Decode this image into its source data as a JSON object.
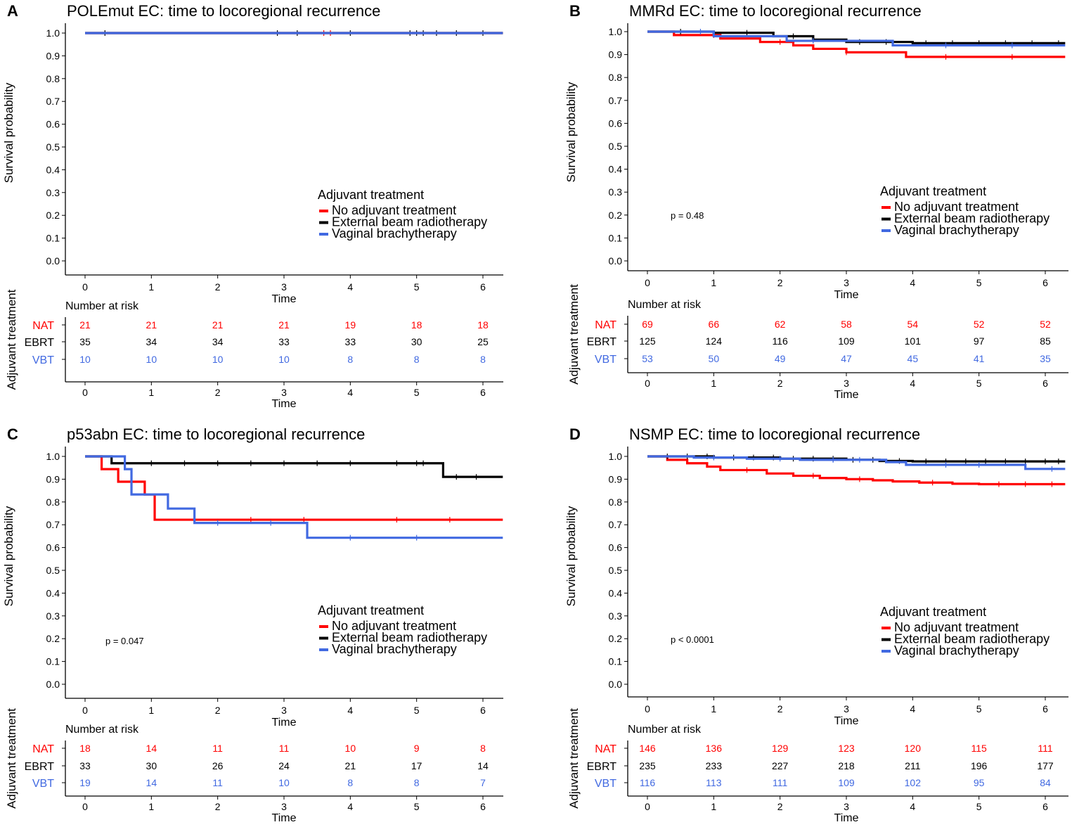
{
  "figure": {
    "colors": {
      "NAT": "#ff0000",
      "EBRT": "#000000",
      "VBT": "#4169e1"
    },
    "number_at_risk_label": "Number at risk"
  },
  "chart_data": [
    {
      "type": "line",
      "panel_label": "A",
      "title": "POLEmut EC: time to locoregional recurrence",
      "xlabel": "Time",
      "ylabel": "Survival probability",
      "risk_ylabel": "Adjuvant treatment",
      "xlim": [
        0,
        6.3
      ],
      "ylim": [
        0,
        1
      ],
      "x_ticks": [
        0,
        1,
        2,
        3,
        4,
        5,
        6
      ],
      "y_ticks": [
        "0.0",
        "0.1",
        "0.2",
        "0.3",
        "0.4",
        "0.5",
        "0.6",
        "0.7",
        "0.8",
        "0.9",
        "1.0"
      ],
      "legend": {
        "title": "Adjuvant treatment",
        "position": "bottom-right",
        "entries": [
          "No adjuvant treatment",
          "External beam radiotherapy",
          "Vaginal brachytherapy"
        ]
      },
      "p_value": "",
      "series": [
        {
          "name": "NAT",
          "color": "#ff0000",
          "x": [
            0,
            6.3
          ],
          "y": [
            1.0,
            1.0
          ],
          "censor": [
            3.6,
            3.7
          ]
        },
        {
          "name": "EBRT",
          "color": "#000000",
          "x": [
            0,
            6.3
          ],
          "y": [
            1.0,
            1.0
          ],
          "censor": [
            0.3,
            2.9,
            3.2,
            4.0,
            4.9,
            5.0,
            5.1,
            5.3,
            5.6,
            6.0
          ]
        },
        {
          "name": "VBT",
          "color": "#4169e1",
          "x": [
            0,
            6.3
          ],
          "y": [
            1.0,
            1.0
          ],
          "censor": []
        }
      ],
      "risk_table": [
        {
          "group": "NAT",
          "values": [
            "21",
            "21",
            "21",
            "21",
            "19",
            "18",
            "18"
          ]
        },
        {
          "group": "EBRT",
          "values": [
            "35",
            "34",
            "34",
            "33",
            "33",
            "30",
            "25"
          ]
        },
        {
          "group": "VBT",
          "values": [
            "10",
            "10",
            "10",
            "10",
            "8",
            "8",
            "8"
          ]
        }
      ]
    },
    {
      "type": "line",
      "panel_label": "B",
      "title": "MMRd EC: time to locoregional recurrence",
      "xlabel": "Time",
      "ylabel": "Survival probability",
      "risk_ylabel": "Adjuvant treatment",
      "xlim": [
        0,
        6.3
      ],
      "ylim": [
        0,
        1
      ],
      "x_ticks": [
        0,
        1,
        2,
        3,
        4,
        5,
        6
      ],
      "y_ticks": [
        "0.0",
        "0.1",
        "0.2",
        "0.3",
        "0.4",
        "0.5",
        "0.6",
        "0.7",
        "0.8",
        "0.9",
        "1.0"
      ],
      "legend": {
        "title": "Adjuvant treatment",
        "position": "bottom-right",
        "entries": [
          "No adjuvant treatment",
          "External beam radiotherapy",
          "Vaginal brachytherapy"
        ]
      },
      "p_value": "p = 0.48",
      "series": [
        {
          "name": "NAT",
          "color": "#ff0000",
          "x": [
            0,
            0.4,
            1.1,
            1.7,
            2.2,
            2.5,
            3.0,
            3.9,
            6.3
          ],
          "y": [
            1.0,
            0.985,
            0.97,
            0.955,
            0.94,
            0.925,
            0.91,
            0.89,
            0.89
          ],
          "censor": [
            1.0,
            2.0,
            3.0,
            4.5,
            5.5
          ]
        },
        {
          "name": "EBRT",
          "color": "#000000",
          "x": [
            0,
            1.0,
            1.9,
            2.5,
            3.0,
            4.0,
            6.3
          ],
          "y": [
            1.0,
            0.995,
            0.98,
            0.965,
            0.955,
            0.95,
            0.95
          ],
          "censor": [
            0.5,
            1.5,
            2.2,
            3.2,
            3.6,
            4.2,
            4.6,
            5.0,
            5.4,
            5.8,
            6.2
          ]
        },
        {
          "name": "VBT",
          "color": "#4169e1",
          "x": [
            0,
            1.0,
            2.1,
            3.7,
            6.3
          ],
          "y": [
            1.0,
            0.98,
            0.96,
            0.94,
            0.94
          ],
          "censor": [
            0.8,
            2.5,
            4.5,
            5.5
          ]
        }
      ],
      "risk_table": [
        {
          "group": "NAT",
          "values": [
            "69",
            "66",
            "62",
            "58",
            "54",
            "52",
            "52"
          ]
        },
        {
          "group": "EBRT",
          "values": [
            "125",
            "124",
            "116",
            "109",
            "101",
            "97",
            "85"
          ]
        },
        {
          "group": "VBT",
          "values": [
            "53",
            "50",
            "49",
            "47",
            "45",
            "41",
            "35"
          ]
        }
      ]
    },
    {
      "type": "line",
      "panel_label": "C",
      "title": "p53abn EC: time to locoregional recurrence",
      "xlabel": "Time",
      "ylabel": "Survival probability",
      "risk_ylabel": "Adjuvant treatment",
      "xlim": [
        0,
        6.3
      ],
      "ylim": [
        0,
        1
      ],
      "x_ticks": [
        0,
        1,
        2,
        3,
        4,
        5,
        6
      ],
      "y_ticks": [
        "0.0",
        "0.1",
        "0.2",
        "0.3",
        "0.4",
        "0.5",
        "0.6",
        "0.7",
        "0.8",
        "0.9",
        "1.0"
      ],
      "legend": {
        "title": "Adjuvant treatment",
        "position": "bottom-right",
        "entries": [
          "No adjuvant treatment",
          "External beam radiotherapy",
          "Vaginal brachytherapy"
        ]
      },
      "p_value": "p = 0.047",
      "series": [
        {
          "name": "NAT",
          "color": "#ff0000",
          "x": [
            0,
            0.25,
            0.5,
            0.9,
            1.05,
            6.3
          ],
          "y": [
            1.0,
            0.944,
            0.889,
            0.833,
            0.722,
            0.722
          ],
          "censor": [
            2.5,
            3.3,
            4.7,
            5.5
          ]
        },
        {
          "name": "EBRT",
          "color": "#000000",
          "x": [
            0,
            0.4,
            5.4,
            6.3
          ],
          "y": [
            1.0,
            0.97,
            0.91,
            0.91
          ],
          "censor": [
            1.0,
            1.5,
            2.0,
            2.5,
            3.0,
            3.5,
            4.0,
            4.7,
            5.0,
            5.1,
            5.6,
            5.9
          ]
        },
        {
          "name": "VBT",
          "color": "#4169e1",
          "x": [
            0,
            0.6,
            0.7,
            1.25,
            1.65,
            3.35,
            6.3
          ],
          "y": [
            1.0,
            0.944,
            0.833,
            0.771,
            0.708,
            0.643,
            0.643
          ],
          "censor": [
            2.0,
            2.8,
            4.0,
            5.0
          ]
        }
      ],
      "risk_table": [
        {
          "group": "NAT",
          "values": [
            "18",
            "14",
            "11",
            "11",
            "10",
            "9",
            "8"
          ]
        },
        {
          "group": "EBRT",
          "values": [
            "33",
            "30",
            "26",
            "24",
            "21",
            "17",
            "14"
          ]
        },
        {
          "group": "VBT",
          "values": [
            "19",
            "14",
            "11",
            "10",
            "8",
            "8",
            "7"
          ]
        }
      ]
    },
    {
      "type": "line",
      "panel_label": "D",
      "title": "NSMP EC: time to locoregional recurrence",
      "xlabel": "Time",
      "ylabel": "Survival probability",
      "risk_ylabel": "Adjuvant treatment",
      "xlim": [
        0,
        6.3
      ],
      "ylim": [
        0,
        1
      ],
      "x_ticks": [
        0,
        1,
        2,
        3,
        4,
        5,
        6
      ],
      "y_ticks": [
        "0.0",
        "0.1",
        "0.2",
        "0.3",
        "0.4",
        "0.5",
        "0.6",
        "0.7",
        "0.8",
        "0.9",
        "1.0"
      ],
      "legend": {
        "title": "Adjuvant treatment",
        "position": "bottom-right",
        "entries": [
          "No adjuvant treatment",
          "External beam radiotherapy",
          "Vaginal brachytherapy"
        ]
      },
      "p_value": "p < 0.0001",
      "series": [
        {
          "name": "NAT",
          "color": "#ff0000",
          "x": [
            0,
            0.3,
            0.6,
            0.9,
            1.1,
            1.8,
            2.2,
            2.6,
            3.0,
            3.4,
            3.7,
            4.1,
            4.6,
            5.0,
            6.3
          ],
          "y": [
            1.0,
            0.985,
            0.97,
            0.955,
            0.94,
            0.925,
            0.915,
            0.905,
            0.9,
            0.895,
            0.89,
            0.885,
            0.88,
            0.878,
            0.878
          ],
          "censor": [
            1.5,
            2.5,
            3.2,
            4.3,
            5.3,
            5.7,
            6.1
          ]
        },
        {
          "name": "EBRT",
          "color": "#000000",
          "x": [
            0,
            1.0,
            2.0,
            3.0,
            3.5,
            4.0,
            6.3
          ],
          "y": [
            1.0,
            0.995,
            0.99,
            0.985,
            0.98,
            0.978,
            0.978
          ],
          "censor": [
            0.3,
            0.6,
            0.9,
            1.3,
            1.6,
            1.9,
            2.2,
            2.5,
            2.8,
            3.1,
            3.4,
            3.8,
            4.2,
            4.5,
            4.8,
            5.1,
            5.4,
            5.7,
            6.0,
            6.2
          ]
        },
        {
          "name": "VBT",
          "color": "#4169e1",
          "x": [
            0,
            0.7,
            1.5,
            2.3,
            3.6,
            3.9,
            5.7,
            6.3
          ],
          "y": [
            1.0,
            0.995,
            0.99,
            0.985,
            0.975,
            0.963,
            0.945,
            0.945
          ],
          "censor": [
            1.0,
            2.0,
            2.8,
            3.2,
            4.5,
            5.0,
            6.1
          ]
        }
      ],
      "risk_table": [
        {
          "group": "NAT",
          "values": [
            "146",
            "136",
            "129",
            "123",
            "120",
            "115",
            "111"
          ]
        },
        {
          "group": "EBRT",
          "values": [
            "235",
            "233",
            "227",
            "218",
            "211",
            "196",
            "177"
          ]
        },
        {
          "group": "VBT",
          "values": [
            "116",
            "113",
            "111",
            "109",
            "102",
            "95",
            "84"
          ]
        }
      ]
    }
  ]
}
